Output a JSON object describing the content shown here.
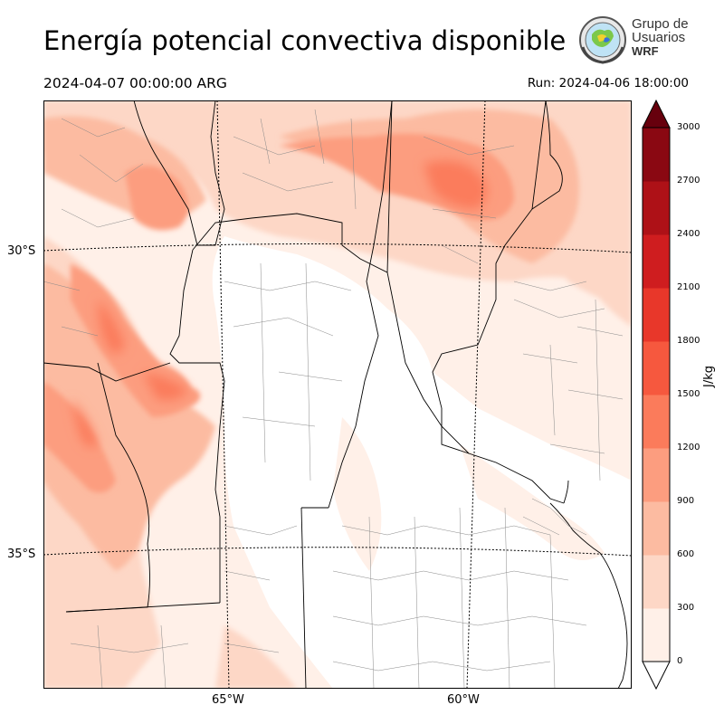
{
  "header": {
    "title": "Energía potencial convectiva disponible",
    "valid_time": "2024-04-07 00:00:00 ARG",
    "run_time": "Run: 2024-04-06 18:00:00"
  },
  "logo": {
    "line1": "Grupo de",
    "line2": "Usuarios",
    "line3": "WRF"
  },
  "map": {
    "latitude_labels": [
      "30°S",
      "35°S"
    ],
    "longitude_labels": [
      "65°W",
      "60°W"
    ]
  },
  "colorbar": {
    "unit": "J/kg",
    "ticks": [
      "3000",
      "2700",
      "2400",
      "2100",
      "1800",
      "1500",
      "1200",
      "900",
      "600",
      "300",
      "0"
    ],
    "colors": [
      "#fff0e8",
      "#fdd7c6",
      "#fcbba1",
      "#fc9d7f",
      "#fb7b5b",
      "#f6583e",
      "#e8372a",
      "#cf1d1f",
      "#ae1117",
      "#8a0812",
      "#67000d"
    ],
    "extend": "both"
  }
}
